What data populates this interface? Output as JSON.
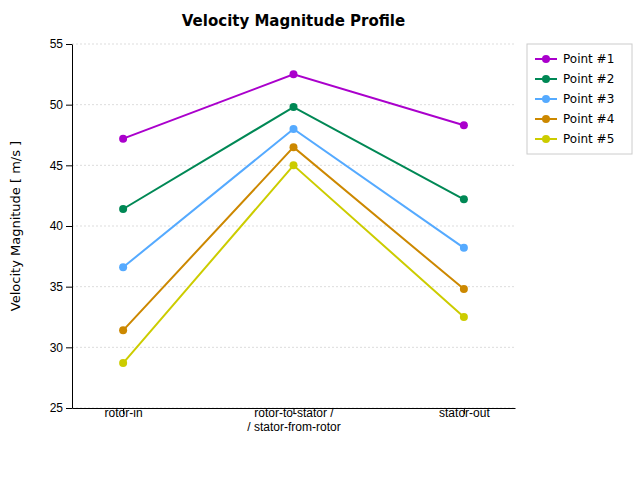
{
  "chart_data": {
    "type": "line",
    "title": "Velocity Magnitude Profile",
    "y_label": "Velocity Magnitude [ m/s ]",
    "categories": [
      "rotor-in",
      "rotor-to-stator /\n/ stator-from-rotor",
      "stator-out"
    ],
    "series": [
      {
        "name": "Point #1",
        "color": "#aa00cc",
        "values": [
          47.2,
          52.5,
          48.3
        ]
      },
      {
        "name": "Point #2",
        "color": "#008855",
        "values": [
          41.4,
          49.8,
          42.2
        ]
      },
      {
        "name": "Point #3",
        "color": "#55aaff",
        "values": [
          36.6,
          48.0,
          38.2
        ]
      },
      {
        "name": "Point #4",
        "color": "#cc8800",
        "values": [
          31.4,
          46.5,
          34.8
        ]
      },
      {
        "name": "Point #5",
        "color": "#cccc00",
        "values": [
          28.7,
          45.0,
          32.5
        ]
      }
    ],
    "ylim": [
      25,
      55
    ],
    "yticks": [
      25,
      30,
      35,
      40,
      45,
      50,
      55
    ],
    "grid": true,
    "legend": "upper right",
    "marker": "circle"
  }
}
